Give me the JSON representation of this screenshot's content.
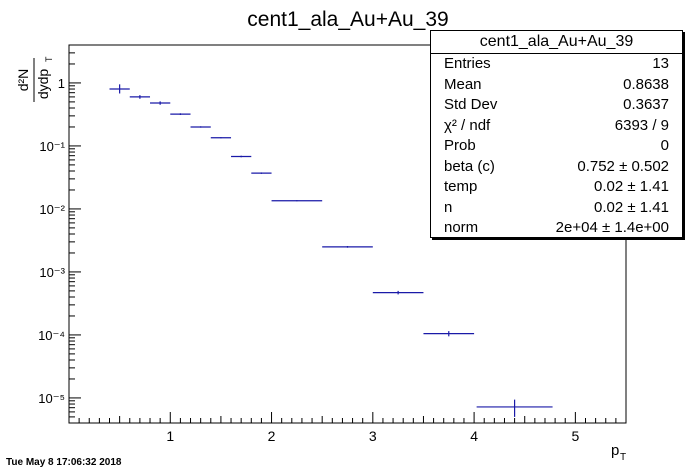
{
  "chart_data": {
    "type": "scatter",
    "title": "cent1_ala_Au+Au_39",
    "xlabel": "p",
    "xlabel_sub": "T",
    "ylabel": "d²N / dydp",
    "ylabel_sub": "T",
    "xlim": [
      0.0,
      5.5
    ],
    "ylim": [
      4e-06,
      4.0
    ],
    "yscale": "log",
    "x_ticks": [
      "1",
      "2",
      "3",
      "4",
      "5"
    ],
    "y_ticks": [
      "1",
      "10⁻¹",
      "10⁻²",
      "10⁻³",
      "10⁻⁴",
      "10⁻⁵"
    ],
    "marker_color": "#1a1aa8",
    "points": [
      {
        "x": 0.5,
        "xerr": 0.1,
        "y": 0.8,
        "yerr_lo": 0.12,
        "yerr_hi": 0.15
      },
      {
        "x": 0.7,
        "xerr": 0.1,
        "y": 0.6,
        "yerr_lo": 0.04,
        "yerr_hi": 0.04
      },
      {
        "x": 0.9,
        "xerr": 0.1,
        "y": 0.48,
        "yerr_lo": 0.03,
        "yerr_hi": 0.03
      },
      {
        "x": 1.1,
        "xerr": 0.1,
        "y": 0.32,
        "yerr_lo": 0.01,
        "yerr_hi": 0.01
      },
      {
        "x": 1.3,
        "xerr": 0.1,
        "y": 0.2,
        "yerr_lo": 0.005,
        "yerr_hi": 0.005
      },
      {
        "x": 1.5,
        "xerr": 0.1,
        "y": 0.135,
        "yerr_lo": 0.003,
        "yerr_hi": 0.003
      },
      {
        "x": 1.7,
        "xerr": 0.1,
        "y": 0.068,
        "yerr_lo": 0.002,
        "yerr_hi": 0.002
      },
      {
        "x": 1.9,
        "xerr": 0.1,
        "y": 0.037,
        "yerr_lo": 0.001,
        "yerr_hi": 0.001
      },
      {
        "x": 2.25,
        "xerr": 0.25,
        "y": 0.0135,
        "yerr_lo": 0.0003,
        "yerr_hi": 0.0003
      },
      {
        "x": 2.75,
        "xerr": 0.25,
        "y": 0.0025,
        "yerr_lo": 8e-05,
        "yerr_hi": 8e-05
      },
      {
        "x": 3.25,
        "xerr": 0.25,
        "y": 0.00047,
        "yerr_lo": 3e-05,
        "yerr_hi": 3e-05
      },
      {
        "x": 3.75,
        "xerr": 0.25,
        "y": 0.000105,
        "yerr_lo": 1e-05,
        "yerr_hi": 1e-05
      },
      {
        "x": 4.4,
        "xerr": 0.375,
        "y": 7.2e-06,
        "yerr_lo": 2.2e-06,
        "yerr_hi": 2.2e-06
      }
    ]
  },
  "stats": {
    "title": "cent1_ala_Au+Au_39",
    "rows": [
      {
        "label": "Entries",
        "value": "13"
      },
      {
        "label": "Mean",
        "value": "0.8638"
      },
      {
        "label": "Std Dev",
        "value": "0.3637"
      },
      {
        "label": "χ² / ndf",
        "value": "6393 / 9"
      },
      {
        "label": "Prob",
        "value": "0"
      },
      {
        "label": "beta (c)",
        "value": "0.752 ± 0.502"
      },
      {
        "label": "temp",
        "value": "0.02 ± 1.41"
      },
      {
        "label": "n",
        "value": "0.02 ± 1.41"
      },
      {
        "label": "norm",
        "value": "2e+04 ± 1.4e+00"
      }
    ]
  },
  "footer": {
    "timestamp": "Tue May  8 17:06:32 2018"
  }
}
